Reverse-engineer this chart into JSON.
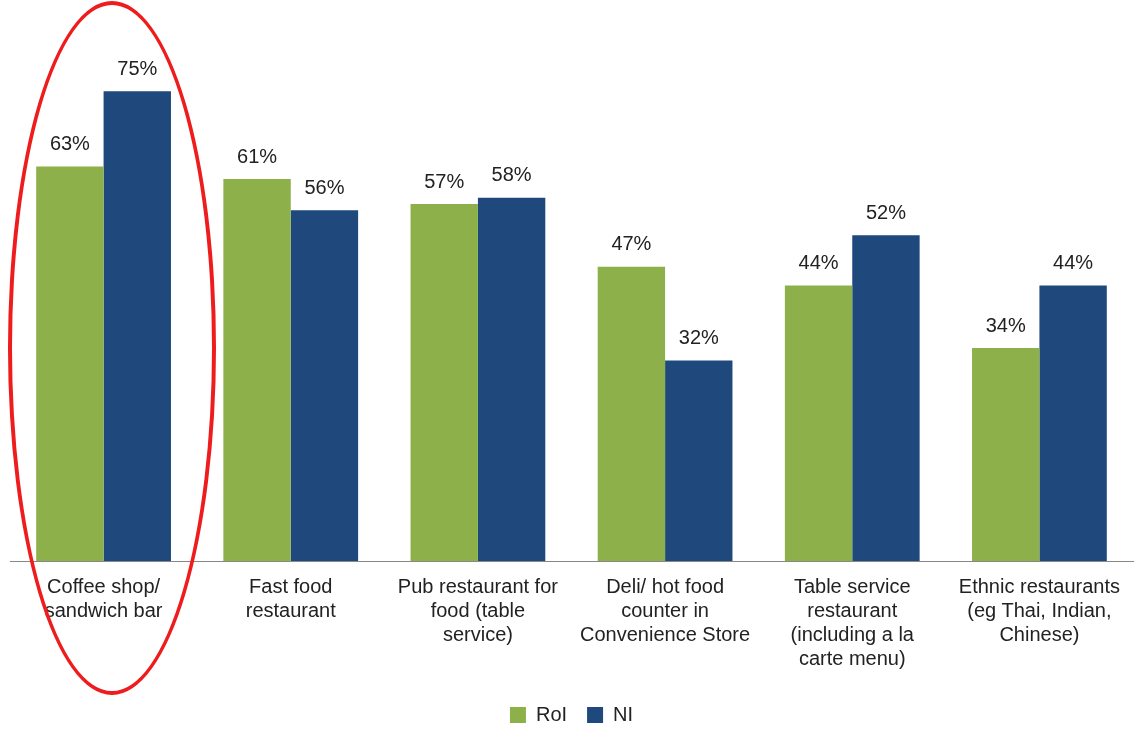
{
  "chart_data": {
    "type": "bar",
    "categories": [
      "Coffee shop/ sandwich bar",
      "Fast food restaurant",
      "Pub restaurant for food (table service)",
      "Deli/ hot food counter in Convenience Store",
      "Table service restaurant (including a la carte menu)",
      "Ethnic restaurants (eg Thai, Indian, Chinese)"
    ],
    "series": [
      {
        "name": "RoI",
        "color": "#8db04a",
        "values": [
          63,
          61,
          57,
          47,
          44,
          34
        ],
        "value_labels": [
          "63%",
          "61%",
          "57%",
          "47%",
          "44%",
          "34%"
        ]
      },
      {
        "name": "NI",
        "color": "#1f497d",
        "values": [
          75,
          56,
          58,
          32,
          52,
          44
        ],
        "value_labels": [
          "75%",
          "56%",
          "58%",
          "32%",
          "52%",
          "44%"
        ]
      }
    ],
    "grid": false,
    "legend": "bottom"
  }
}
